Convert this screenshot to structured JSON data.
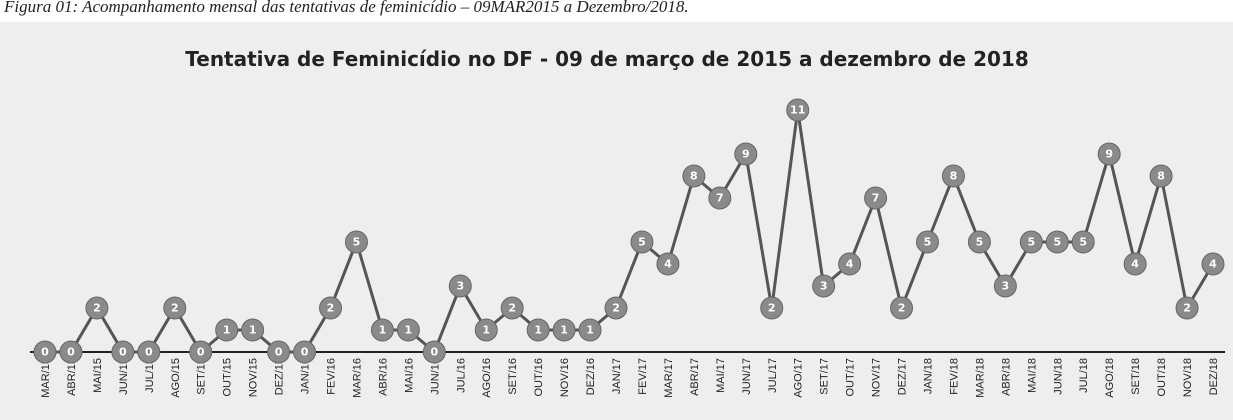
{
  "caption": "Figura 01: Acompanhamento mensal das tentativas de feminicídio – 09MAR2015 a Dezembro/2018.",
  "chart_data": {
    "type": "line",
    "title": "Tentativa de Feminicídio no DF - 09 de março de 2015 a dezembro de 2018",
    "categories": [
      "MAR/15",
      "ABR/15",
      "MAI/15",
      "JUN/15",
      "JUL/15",
      "AGO/15",
      "SET/15",
      "OUT/15",
      "NOV/15",
      "DEZ/15",
      "JAN/16",
      "FEV/16",
      "MAR/16",
      "ABR/16",
      "MAI/16",
      "JUN/16",
      "JUL/16",
      "AGO/16",
      "SET/16",
      "OUT/16",
      "NOV/16",
      "DEZ/16",
      "JAN/17",
      "FEV/17",
      "MAR/17",
      "ABR/17",
      "MAI/17",
      "JUN/17",
      "JUL/17",
      "AGO/17",
      "SET/17",
      "OUT/17",
      "NOV/17",
      "DEZ/17",
      "JAN/18",
      "FEV/18",
      "MAR/18",
      "ABR/18",
      "MAI/18",
      "JUN/18",
      "JUL/18",
      "AGO/18",
      "SET/18",
      "OUT/18",
      "NOV/18",
      "DEZ/18"
    ],
    "values": [
      0,
      0,
      2,
      0,
      0,
      2,
      0,
      1,
      1,
      0,
      0,
      2,
      5,
      1,
      1,
      0,
      3,
      1,
      2,
      1,
      1,
      1,
      2,
      5,
      4,
      8,
      7,
      9,
      2,
      11,
      3,
      4,
      7,
      2,
      5,
      8,
      5,
      3,
      5,
      5,
      5,
      9,
      4,
      8,
      2,
      4
    ],
    "color": "#555555",
    "marker_color": "#8a8a8a",
    "ylim": [
      0,
      12
    ]
  }
}
